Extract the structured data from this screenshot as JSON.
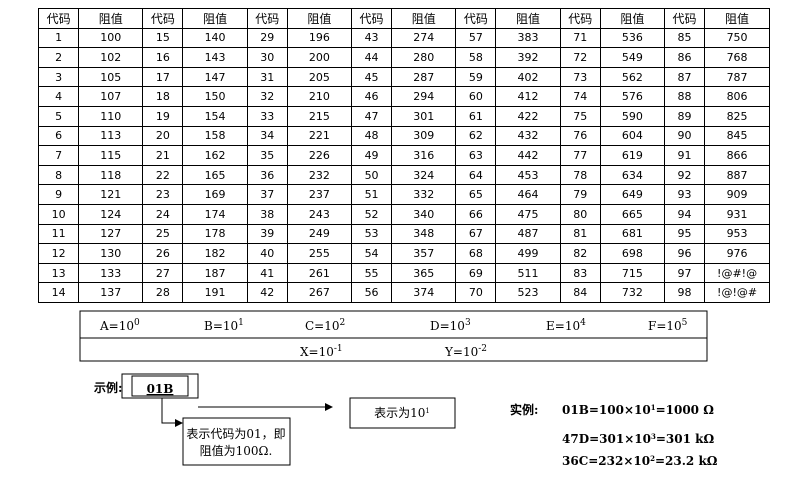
{
  "table": {
    "header": [
      "代码",
      "阻值",
      "代码",
      "阻值",
      "代码",
      "阻值",
      "代码",
      "阻值",
      "代码",
      "阻值",
      "代码",
      "阻值",
      "代码",
      "阻值"
    ],
    "rows": [
      [
        1,
        100,
        15,
        140,
        29,
        196,
        43,
        274,
        57,
        383,
        71,
        536,
        85,
        750
      ],
      [
        2,
        102,
        16,
        143,
        30,
        200,
        44,
        280,
        58,
        392,
        72,
        549,
        86,
        768
      ],
      [
        3,
        105,
        17,
        147,
        31,
        205,
        45,
        287,
        59,
        402,
        73,
        562,
        87,
        787
      ],
      [
        4,
        107,
        18,
        150,
        32,
        210,
        46,
        294,
        60,
        412,
        74,
        576,
        88,
        806
      ],
      [
        5,
        110,
        19,
        154,
        33,
        215,
        47,
        301,
        61,
        422,
        75,
        590,
        89,
        825
      ],
      [
        6,
        113,
        20,
        158,
        34,
        221,
        48,
        309,
        62,
        432,
        76,
        604,
        90,
        845
      ],
      [
        7,
        115,
        21,
        162,
        35,
        226,
        49,
        316,
        63,
        442,
        77,
        619,
        91,
        866
      ],
      [
        8,
        118,
        22,
        165,
        36,
        232,
        50,
        324,
        64,
        453,
        78,
        634,
        92,
        887
      ],
      [
        9,
        121,
        23,
        169,
        37,
        237,
        51,
        332,
        65,
        464,
        79,
        649,
        93,
        909
      ],
      [
        10,
        124,
        24,
        174,
        38,
        243,
        52,
        340,
        66,
        475,
        80,
        665,
        94,
        931
      ],
      [
        11,
        127,
        25,
        178,
        39,
        249,
        53,
        348,
        67,
        487,
        81,
        681,
        95,
        953
      ],
      [
        12,
        130,
        26,
        182,
        40,
        255,
        54,
        357,
        68,
        499,
        82,
        698,
        96,
        976
      ],
      [
        13,
        133,
        27,
        187,
        41,
        261,
        55,
        365,
        69,
        511,
        83,
        715,
        97,
        "!@#!@"
      ],
      [
        14,
        137,
        28,
        191,
        42,
        267,
        56,
        374,
        70,
        523,
        84,
        732,
        98,
        "!@!@#"
      ]
    ]
  },
  "legend": {
    "row1": [
      {
        "base": "A=10",
        "exp": "0"
      },
      {
        "base": "B=10",
        "exp": "1"
      },
      {
        "base": "C=10",
        "exp": "2"
      },
      {
        "base": "D=10",
        "exp": "3"
      },
      {
        "base": "E=10",
        "exp": "4"
      },
      {
        "base": "F=10",
        "exp": "5"
      }
    ],
    "row2": [
      {
        "base": "X=10",
        "exp": "-1"
      },
      {
        "base": "Y=10",
        "exp": "-2"
      }
    ]
  },
  "example": {
    "label": "示例:",
    "code": "01B",
    "callout": [
      "表示代码为01，即",
      "阻值为100Ω."
    ],
    "meaning": {
      "text": "表示为10",
      "exp": "1"
    }
  },
  "instances": {
    "label": "实例:",
    "lines": [
      {
        "text": "01B=100×10",
        "exp": "1",
        "rest": "=1000 Ω"
      },
      {
        "text": "47D=301×10",
        "exp": "3",
        "rest": "=301 kΩ"
      },
      {
        "text": "36C=232×10",
        "exp": "2",
        "rest": "=23.2 kΩ"
      }
    ]
  }
}
